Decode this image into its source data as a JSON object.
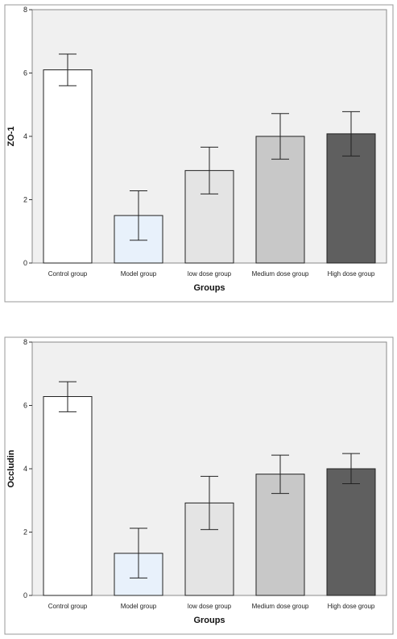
{
  "chart_data": [
    {
      "type": "bar",
      "title": "",
      "xlabel": "Groups",
      "ylabel": "ZO-1",
      "ylim": [
        0,
        8
      ],
      "yticks": [
        0,
        2,
        4,
        6,
        8
      ],
      "grid": false,
      "categories": [
        "Control group",
        "Model group",
        "low dose group",
        "Medium dose group",
        "High dose group"
      ],
      "values": [
        6.1,
        1.5,
        2.92,
        4.0,
        4.08
      ],
      "error_low": [
        5.6,
        0.72,
        2.18,
        3.28,
        3.38
      ],
      "error_high": [
        6.6,
        2.28,
        3.66,
        4.72,
        4.78
      ],
      "colors": [
        "#ffffff",
        "#e8f1fb",
        "#e4e4e4",
        "#c8c8c8",
        "#5f5f5f"
      ],
      "background": "#f0f0f0"
    },
    {
      "type": "bar",
      "title": "",
      "xlabel": "Groups",
      "ylabel": "Occludin",
      "ylim": [
        0,
        8
      ],
      "yticks": [
        0,
        2,
        4,
        6,
        8
      ],
      "grid": false,
      "categories": [
        "Control group",
        "Model group",
        "low dose group",
        "Medium dose group",
        "High dose group"
      ],
      "values": [
        6.28,
        1.33,
        2.92,
        3.83,
        4.0
      ],
      "error_low": [
        5.8,
        0.55,
        2.08,
        3.22,
        3.53
      ],
      "error_high": [
        6.75,
        2.12,
        3.76,
        4.43,
        4.48
      ],
      "colors": [
        "#ffffff",
        "#e8f1fb",
        "#e4e4e4",
        "#c8c8c8",
        "#5f5f5f"
      ],
      "background": "#f0f0f0"
    }
  ]
}
